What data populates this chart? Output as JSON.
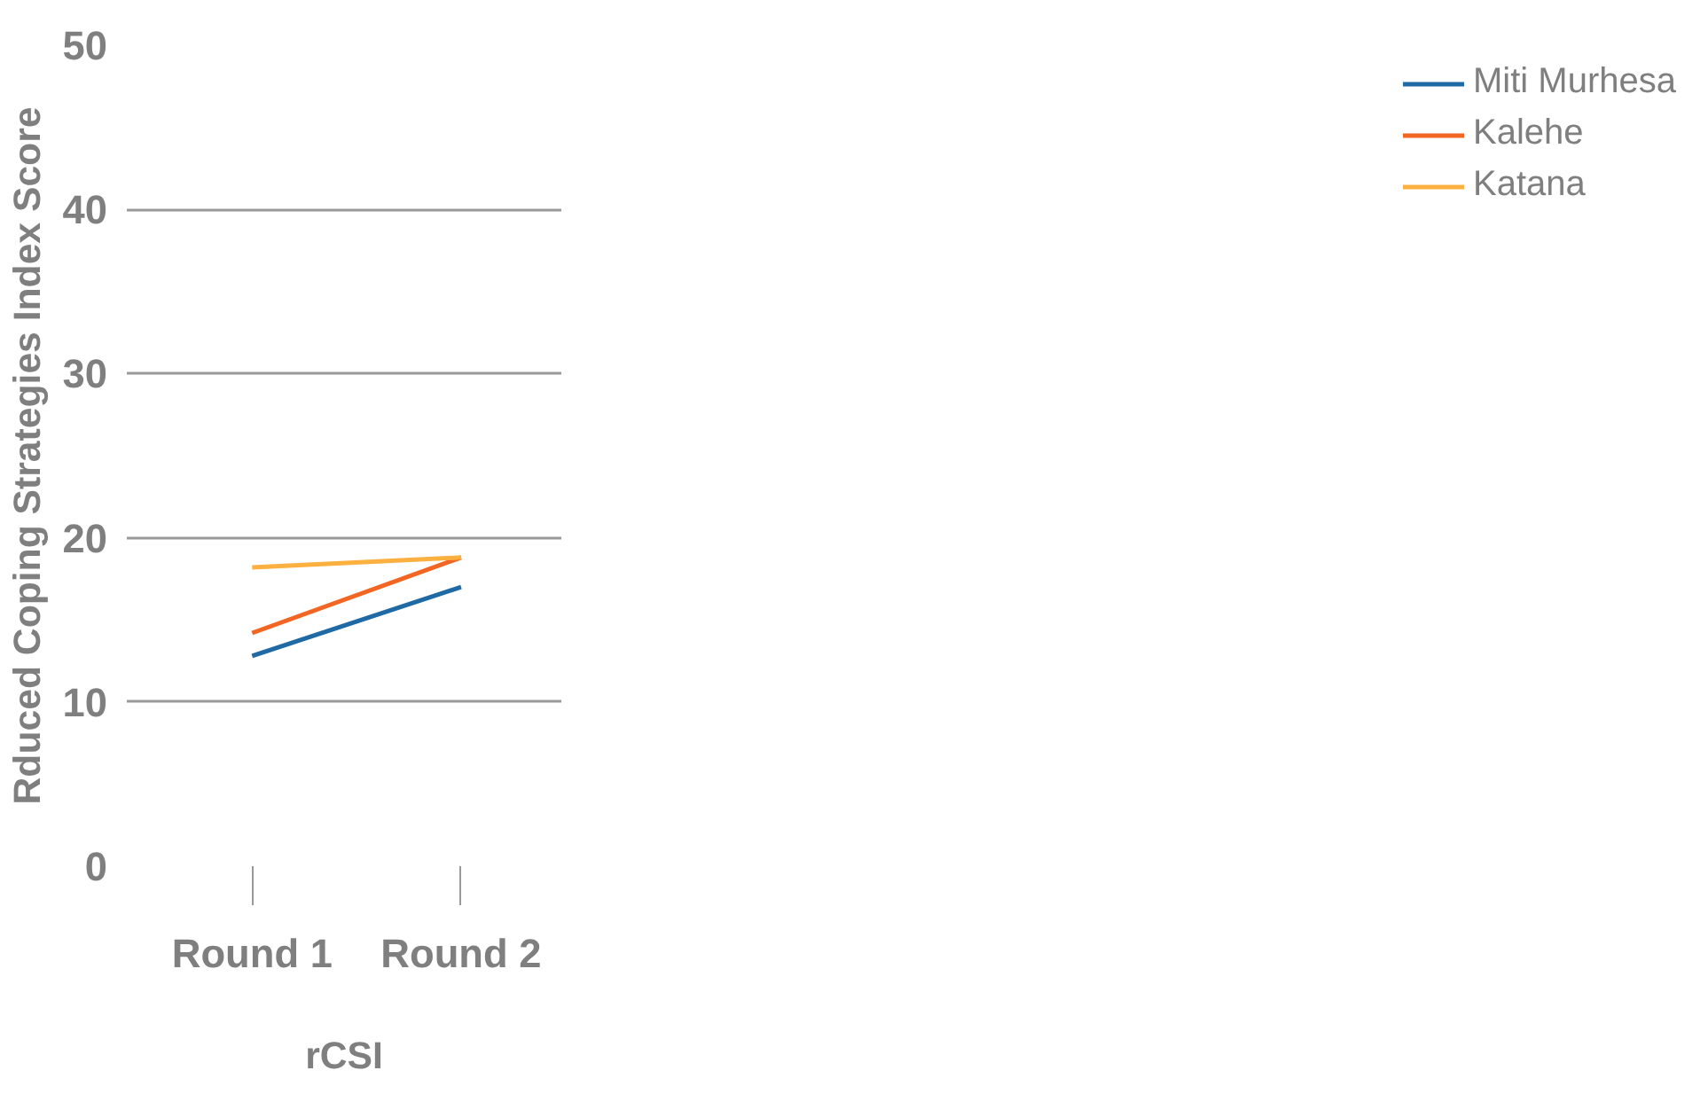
{
  "chart_data": {
    "type": "line",
    "xlabel": "rCSI",
    "ylabel": "Rduced Coping Strategies Index Score",
    "categories": [
      "Round 1",
      "Round 2"
    ],
    "series": [
      {
        "name": "Miti Murhesa",
        "color": "#1f6aa5",
        "values": [
          12.8,
          17.0
        ]
      },
      {
        "name": "Kalehe",
        "color": "#f26522",
        "values": [
          14.2,
          18.8
        ]
      },
      {
        "name": "Katana",
        "color": "#fbb040",
        "values": [
          18.2,
          18.8
        ]
      }
    ],
    "ylim": [
      0,
      50
    ],
    "yticks": [
      0,
      10,
      20,
      30,
      40,
      50
    ],
    "grid": "y",
    "legend": "top right",
    "marker": "none",
    "line_style": "solid"
  }
}
